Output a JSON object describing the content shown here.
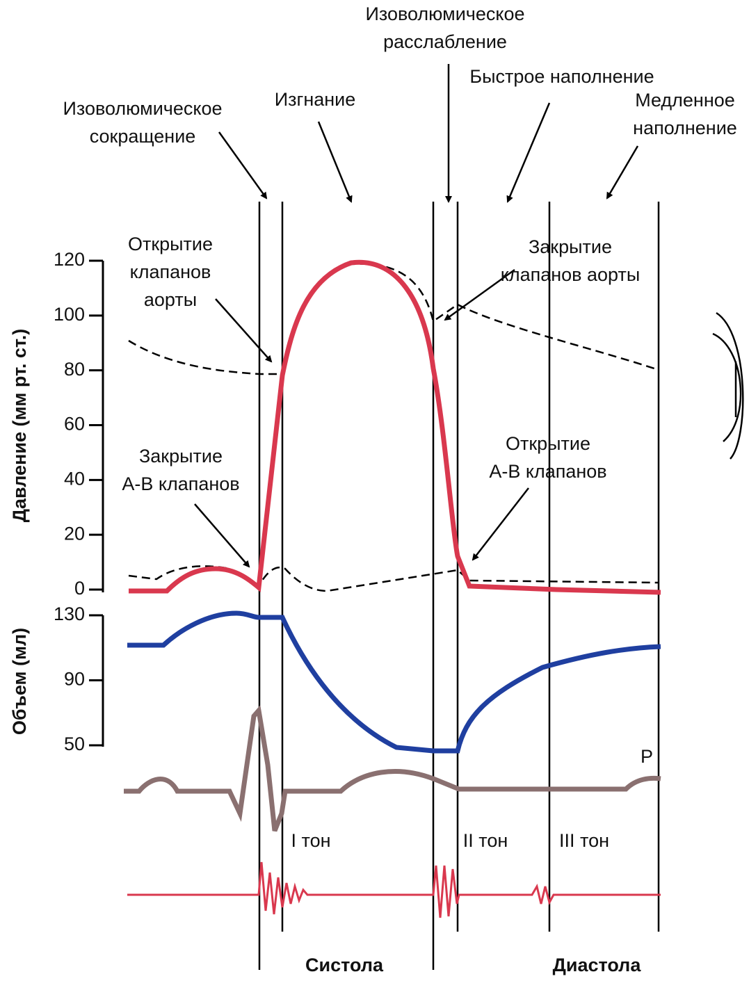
{
  "annotations": [
    {
      "lines": [
        "Изоволюмическое",
        "расслабление"
      ]
    },
    {
      "lines": [
        "Быстрое наполнение"
      ]
    },
    {
      "lines": [
        "Медленное",
        "наполнение"
      ]
    },
    {
      "lines": [
        "Изгнание"
      ]
    },
    {
      "lines": [
        "Изоволюмическое",
        "сокращение"
      ]
    },
    {
      "lines": [
        "Открытие",
        "клапанов",
        "аорты"
      ]
    },
    {
      "lines": [
        "Закрытие",
        "клапанов аорты"
      ]
    },
    {
      "lines": [
        "Закрытие",
        "А-В клапанов"
      ]
    },
    {
      "lines": [
        "Открытие",
        "А-В клапанов"
      ]
    }
  ],
  "axes": {
    "pressure": {
      "label": "Давление (мм рт. ст.)",
      "ticks": [
        0,
        20,
        40,
        60,
        80,
        100,
        120
      ]
    },
    "volume": {
      "label": "Объем (мл)",
      "ticks": [
        50,
        90,
        130
      ]
    }
  },
  "ecg_label": "P",
  "heart_sounds": [
    "I тон",
    "II тон",
    "III тон"
  ],
  "phases": [
    "Систола",
    "Диастола"
  ]
}
